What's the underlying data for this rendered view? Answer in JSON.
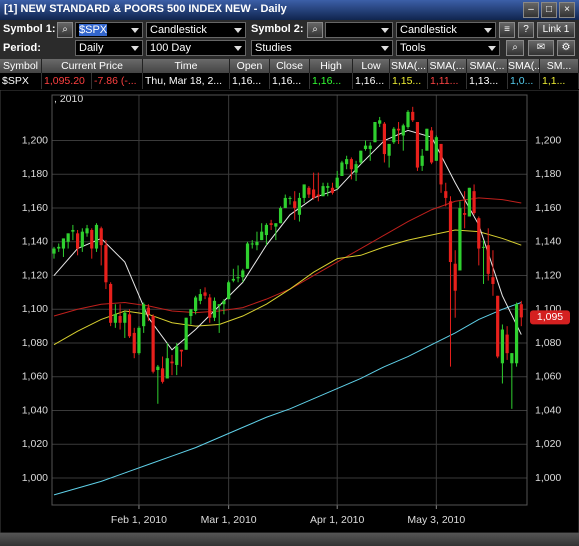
{
  "window": {
    "title": "[1] NEW STANDARD & POORS 500 INDEX NEW - Daily"
  },
  "toolbar": {
    "symbol1_label": "Symbol 1:",
    "symbol1": "$SPX",
    "chart_type1": "Candlestick",
    "symbol2_label": "Symbol 2:",
    "chart_type2": "Candlestick",
    "help": "?",
    "link": "Link 1",
    "period_label": "Period:",
    "period": "Daily",
    "range": "100 Day",
    "studies": "Studies",
    "tools": "Tools"
  },
  "quote_table": {
    "headers": [
      "Symbol",
      "Current Price",
      "Time",
      "Open",
      "Close",
      "High",
      "Low",
      "SMA(...",
      "SMA(...",
      "SMA(...",
      "SMA(...",
      "SM..."
    ],
    "row": [
      "$SPX",
      "1,095.20",
      "-7.86 (-...",
      "Thu, Mar 18, 2...",
      "1,16...",
      "1,16...",
      "1,16...",
      "1,16...",
      "1,15...",
      "1,11...",
      "1,13...",
      "1,0...",
      "1,1..."
    ]
  },
  "chart_data": {
    "type": "candlestick",
    "year_label": ", 2010",
    "up_color": "#2fd02f",
    "down_color": "#e8201c",
    "ylim": [
      984,
      1227
    ],
    "yticks": [
      {
        "value": 1000,
        "label": "1,000"
      },
      {
        "value": 1020,
        "label": "1,020"
      },
      {
        "value": 1040,
        "label": "1,040"
      },
      {
        "value": 1060,
        "label": "1,060"
      },
      {
        "value": 1080,
        "label": "1,080"
      },
      {
        "value": 1100,
        "label": "1,100"
      },
      {
        "value": 1120,
        "label": "1,120"
      },
      {
        "value": 1140,
        "label": "1,140"
      },
      {
        "value": 1160,
        "label": "1,160"
      },
      {
        "value": 1180,
        "label": "1,180"
      },
      {
        "value": 1200,
        "label": "1,200"
      }
    ],
    "grid": true,
    "last_price": {
      "value": 1095.2,
      "label": "1,095"
    },
    "categories": [
      null,
      null,
      null,
      null,
      null,
      null,
      null,
      null,
      null,
      null,
      null,
      null,
      null,
      null,
      null,
      null,
      null,
      null,
      "Feb 1, 2010",
      null,
      null,
      null,
      null,
      null,
      null,
      null,
      null,
      null,
      null,
      null,
      null,
      null,
      null,
      null,
      null,
      null,
      null,
      "Mar 1, 2010",
      null,
      null,
      null,
      null,
      null,
      null,
      null,
      null,
      null,
      null,
      null,
      null,
      null,
      null,
      null,
      null,
      null,
      null,
      null,
      null,
      null,
      null,
      "Apr 1, 2010",
      null,
      null,
      null,
      null,
      null,
      null,
      null,
      null,
      null,
      null,
      null,
      null,
      null,
      null,
      null,
      null,
      null,
      null,
      null,
      null,
      "May 3, 2010",
      null,
      null,
      null,
      null,
      null,
      null,
      null,
      null,
      null,
      null,
      null,
      null,
      null,
      null,
      null,
      null,
      null,
      null
    ],
    "ohlc": [
      [
        1133,
        1137,
        1130,
        1136
      ],
      [
        1136,
        1139,
        1134,
        1137
      ],
      [
        1136,
        1142,
        1131,
        1142
      ],
      [
        1140,
        1145,
        1136,
        1145
      ],
      [
        1146,
        1150,
        1141,
        1147
      ],
      [
        1145,
        1147,
        1132,
        1136
      ],
      [
        1137,
        1148,
        1134,
        1146
      ],
      [
        1145,
        1150,
        1143,
        1148
      ],
      [
        1147,
        1148,
        1130,
        1136
      ],
      [
        1136,
        1151,
        1134,
        1150
      ],
      [
        1148,
        1149,
        1126,
        1138
      ],
      [
        1138,
        1141,
        1112,
        1116
      ],
      [
        1115,
        1116,
        1090,
        1092
      ],
      [
        1092,
        1103,
        1089,
        1097
      ],
      [
        1096,
        1103,
        1088,
        1092
      ],
      [
        1092,
        1099,
        1083,
        1098
      ],
      [
        1097,
        1100,
        1083,
        1084
      ],
      [
        1086,
        1089,
        1071,
        1074
      ],
      [
        1074,
        1090,
        1073,
        1089
      ],
      [
        1090,
        1104,
        1086,
        1103
      ],
      [
        1101,
        1103,
        1093,
        1097
      ],
      [
        1096,
        1097,
        1062,
        1063
      ],
      [
        1064,
        1067,
        1044,
        1066
      ],
      [
        1065,
        1072,
        1056,
        1057
      ],
      [
        1059,
        1080,
        1059,
        1071
      ],
      [
        1069,
        1073,
        1061,
        1068
      ],
      [
        1067,
        1080,
        1061,
        1078
      ],
      [
        1076,
        1076,
        1066,
        1075
      ],
      [
        1076,
        1095,
        1076,
        1095
      ],
      [
        1096,
        1100,
        1091,
        1100
      ],
      [
        1099,
        1108,
        1097,
        1107
      ],
      [
        1105,
        1112,
        1103,
        1109
      ],
      [
        1110,
        1113,
        1106,
        1108
      ],
      [
        1107,
        1109,
        1092,
        1095
      ],
      [
        1095,
        1107,
        1093,
        1105
      ],
      [
        1102,
        1103,
        1086,
        1103
      ],
      [
        1103,
        1106,
        1097,
        1105
      ],
      [
        1106,
        1117,
        1106,
        1116
      ],
      [
        1117,
        1124,
        1116,
        1118
      ],
      [
        1119,
        1126,
        1116,
        1119
      ],
      [
        1119,
        1124,
        1116,
        1123
      ],
      [
        1124,
        1140,
        1124,
        1139
      ],
      [
        1139,
        1141,
        1136,
        1139
      ],
      [
        1138,
        1146,
        1135,
        1140
      ],
      [
        1141,
        1151,
        1141,
        1146
      ],
      [
        1144,
        1151,
        1138,
        1150
      ],
      [
        1151,
        1153,
        1147,
        1150
      ],
      [
        1149,
        1151,
        1141,
        1151
      ],
      [
        1151,
        1161,
        1151,
        1160
      ],
      [
        1160,
        1168,
        1160,
        1166
      ],
      [
        1166,
        1167,
        1162,
        1166
      ],
      [
        1164,
        1170,
        1153,
        1160
      ],
      [
        1156,
        1169,
        1152,
        1166
      ],
      [
        1166,
        1174,
        1163,
        1174
      ],
      [
        1172,
        1173,
        1166,
        1168
      ],
      [
        1171,
        1181,
        1165,
        1166
      ],
      [
        1168,
        1181,
        1164,
        1167
      ],
      [
        1167,
        1175,
        1167,
        1173
      ],
      [
        1172,
        1175,
        1167,
        1173
      ],
      [
        1172,
        1175,
        1168,
        1169
      ],
      [
        1172,
        1182,
        1171,
        1178
      ],
      [
        1179,
        1188,
        1179,
        1187
      ],
      [
        1186,
        1191,
        1183,
        1189
      ],
      [
        1189,
        1190,
        1177,
        1183
      ],
      [
        1181,
        1188,
        1176,
        1186
      ],
      [
        1187,
        1194,
        1186,
        1194
      ],
      [
        1195,
        1200,
        1194,
        1197
      ],
      [
        1195,
        1199,
        1188,
        1197
      ],
      [
        1199,
        1211,
        1199,
        1211
      ],
      [
        1210,
        1214,
        1208,
        1212
      ],
      [
        1210,
        1211,
        1187,
        1192
      ],
      [
        1191,
        1198,
        1184,
        1198
      ],
      [
        1199,
        1208,
        1198,
        1207
      ],
      [
        1207,
        1211,
        1198,
        1206
      ],
      [
        1203,
        1210,
        1194,
        1209
      ],
      [
        1208,
        1218,
        1207,
        1217
      ],
      [
        1217,
        1220,
        1211,
        1212
      ],
      [
        1211,
        1211,
        1182,
        1184
      ],
      [
        1185,
        1195,
        1182,
        1191
      ],
      [
        1194,
        1207,
        1194,
        1207
      ],
      [
        1206,
        1208,
        1186,
        1187
      ],
      [
        1188,
        1203,
        1188,
        1202
      ],
      [
        1198,
        1198,
        1169,
        1174
      ],
      [
        1170,
        1175,
        1161,
        1166
      ],
      [
        1164,
        1167,
        1066,
        1128
      ],
      [
        1127,
        1135,
        1095,
        1111
      ],
      [
        1123,
        1164,
        1123,
        1160
      ],
      [
        1157,
        1170,
        1148,
        1156
      ],
      [
        1155,
        1172,
        1155,
        1172
      ],
      [
        1170,
        1174,
        1156,
        1157
      ],
      [
        1154,
        1155,
        1126,
        1136
      ],
      [
        1137,
        1141,
        1115,
        1137
      ],
      [
        1138,
        1148,
        1117,
        1121
      ],
      [
        1119,
        1135,
        1108,
        1115
      ],
      [
        1108,
        1108,
        1071,
        1072
      ],
      [
        1068,
        1091,
        1056,
        1088
      ],
      [
        1085,
        1090,
        1070,
        1074
      ],
      [
        1068,
        1074,
        1041,
        1074
      ],
      [
        1068,
        1104,
        1066,
        1103
      ],
      [
        1103,
        1105,
        1090,
        1095.2
      ]
    ],
    "overlays": {
      "x": [
        0,
        5,
        10,
        15,
        20,
        25,
        30,
        35,
        40,
        45,
        50,
        55,
        60,
        65,
        70,
        75,
        80,
        85,
        90,
        95,
        99
      ],
      "series": [
        {
          "color": "#5fd0e8",
          "values": [
            990,
            994,
            998,
            1003,
            1008,
            1013,
            1018,
            1024,
            1030,
            1036,
            1041,
            1047,
            1053,
            1059,
            1066,
            1072,
            1079,
            1086,
            1094,
            1100,
            1104
          ]
        },
        {
          "color": "#c0201c",
          "values": [
            1096,
            1100,
            1103,
            1104,
            1102,
            1099,
            1098,
            1099,
            1101,
            1106,
            1112,
            1120,
            1128,
            1136,
            1144,
            1152,
            1159,
            1164,
            1166,
            1165,
            1163
          ]
        },
        {
          "color": "#d8d030",
          "values": [
            1079,
            1087,
            1094,
            1099,
            1097,
            1092,
            1090,
            1091,
            1096,
            1103,
            1112,
            1122,
            1130,
            1132,
            1137,
            1141,
            1144,
            1147,
            1146,
            1142,
            1138
          ]
        },
        {
          "color": "#e8e8e8",
          "values": [
            1120,
            1136,
            1142,
            1128,
            1095,
            1076,
            1088,
            1102,
            1116,
            1138,
            1156,
            1166,
            1171,
            1186,
            1200,
            1206,
            1202,
            1175,
            1150,
            1108,
            1085
          ]
        }
      ]
    }
  }
}
